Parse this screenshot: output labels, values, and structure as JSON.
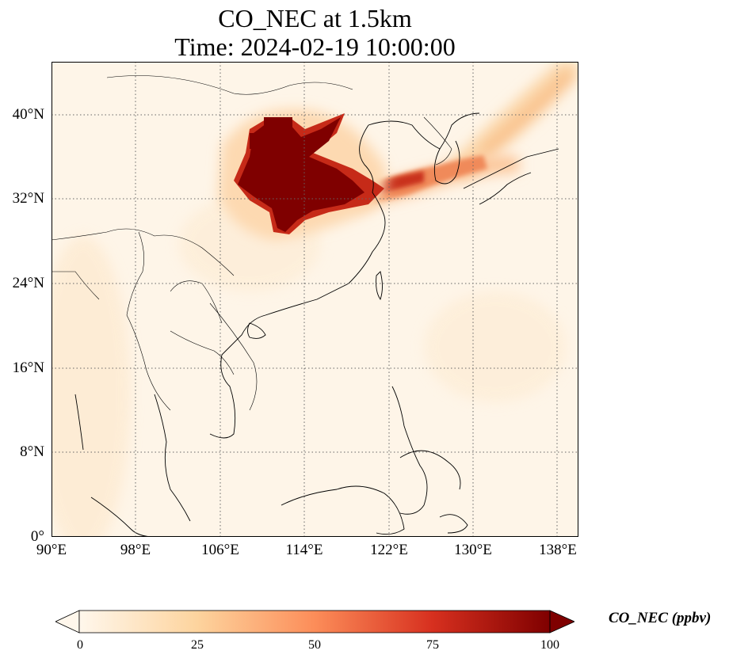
{
  "title": {
    "line1": "CO_NEC at 1.5km",
    "line2": "Time: 2024-02-19 10:00:00"
  },
  "map": {
    "projection": "PlateCarree",
    "lon_range": [
      90,
      140
    ],
    "lat_range": [
      0,
      45
    ],
    "gridlines": "dotted",
    "coastlines": true,
    "borders": true
  },
  "x_ticks": [
    {
      "lon": 90,
      "label": "90°E"
    },
    {
      "lon": 98,
      "label": "98°E"
    },
    {
      "lon": 106,
      "label": "106°E"
    },
    {
      "lon": 114,
      "label": "114°E"
    },
    {
      "lon": 122,
      "label": "122°E"
    },
    {
      "lon": 130,
      "label": "130°E"
    },
    {
      "lon": 138,
      "label": "138°E"
    }
  ],
  "y_ticks": [
    {
      "lat": 0,
      "label": "0°"
    },
    {
      "lat": 8,
      "label": "8°N"
    },
    {
      "lat": 16,
      "label": "16°N"
    },
    {
      "lat": 24,
      "label": "24°N"
    },
    {
      "lat": 32,
      "label": "32°N"
    },
    {
      "lat": 40,
      "label": "40°N"
    }
  ],
  "colorbar": {
    "label": "CO_NEC (ppbv)",
    "colormap": "OrRd",
    "range": [
      0,
      100
    ],
    "extend": "both",
    "ticks": [
      "0",
      "25",
      "50",
      "75",
      "100"
    ],
    "stops": [
      "#fff7ec",
      "#fdd49e",
      "#fc8d59",
      "#d7301f",
      "#7f0000"
    ]
  },
  "plumes": [
    {
      "name": "north-china-plain",
      "level": 100,
      "lon": [
        108,
        118
      ],
      "lat": [
        29,
        40
      ]
    },
    {
      "name": "yellow-sea-korea-plume",
      "level": 55,
      "lon": [
        118,
        128
      ],
      "lat": [
        32,
        37
      ]
    },
    {
      "name": "japan-sea-plume",
      "level": 20,
      "lon": [
        128,
        140
      ],
      "lat": [
        36,
        45
      ]
    },
    {
      "name": "background-haze",
      "level": 8,
      "lon": [
        90,
        140
      ],
      "lat": [
        0,
        45
      ]
    }
  ]
}
